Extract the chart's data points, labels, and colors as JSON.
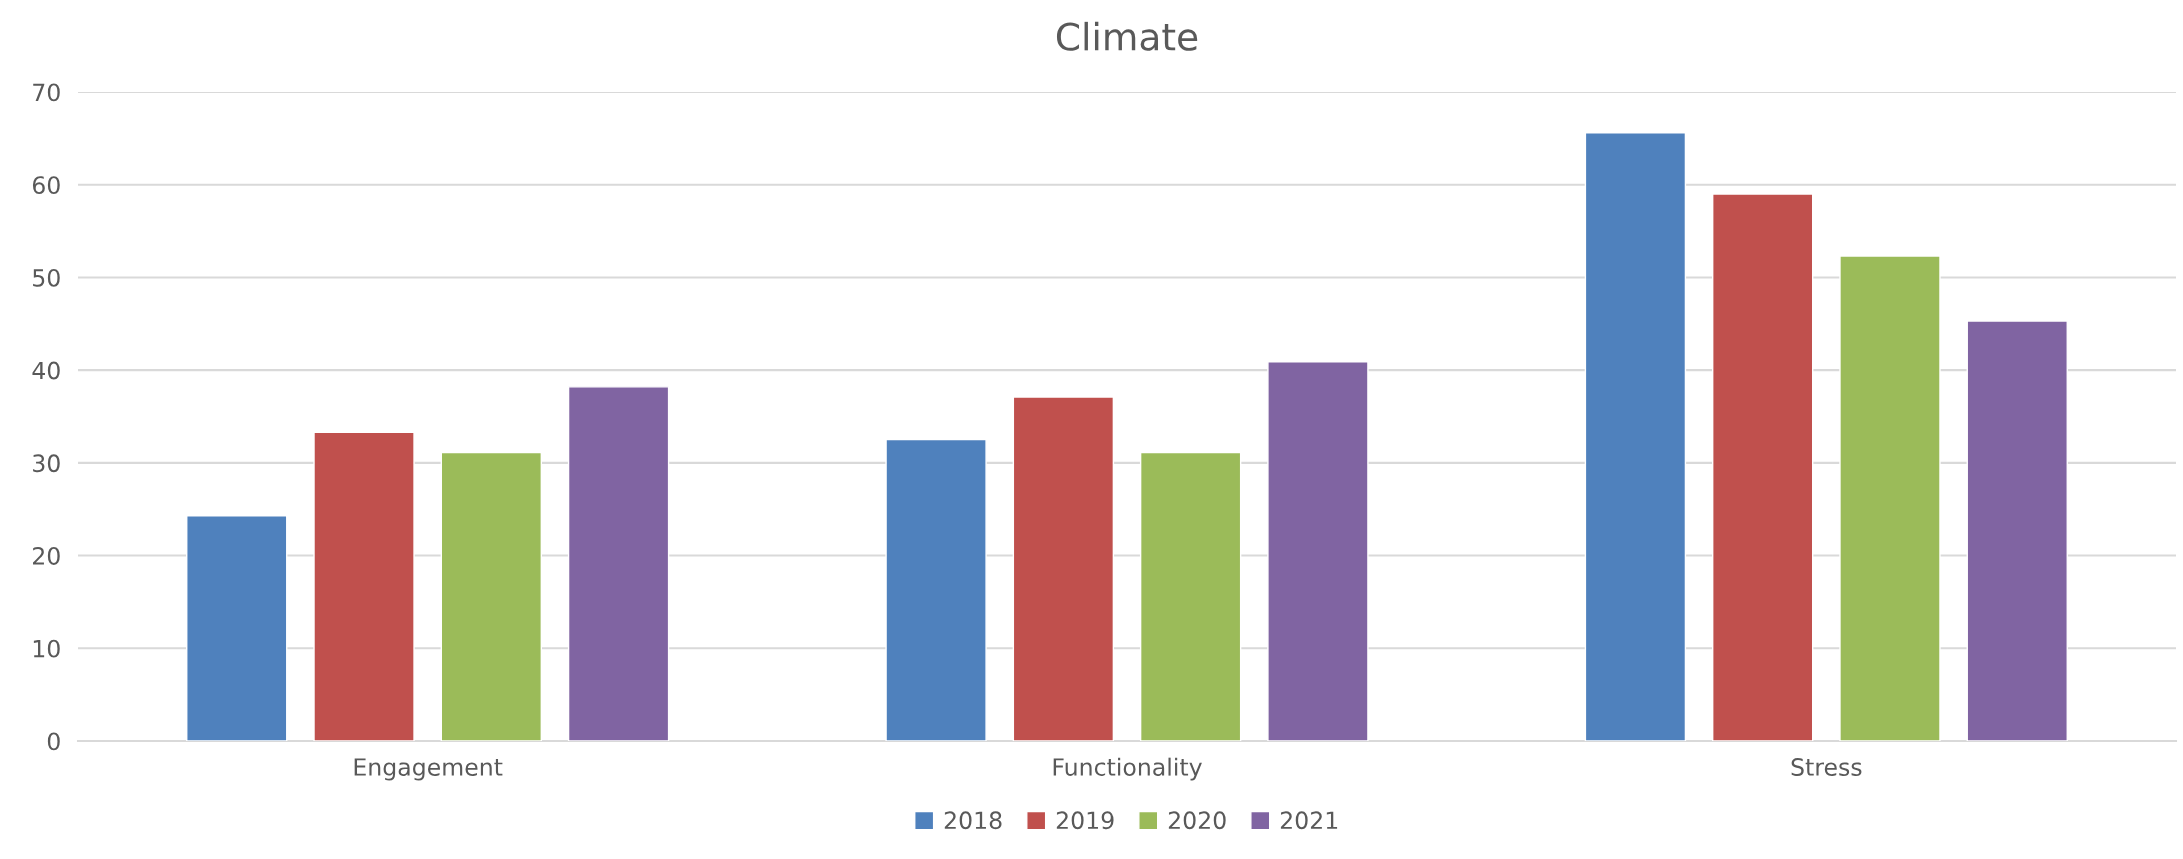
{
  "chart_data": {
    "type": "bar",
    "title": "Climate",
    "categories": [
      "Engagement",
      "Functionality",
      "Stress"
    ],
    "series": [
      {
        "name": "2018",
        "color": "#4f81bd",
        "values": [
          24.3,
          32.5,
          65.6
        ]
      },
      {
        "name": "2019",
        "color": "#c0504d",
        "values": [
          33.3,
          37.1,
          59.0
        ]
      },
      {
        "name": "2020",
        "color": "#9bbb59",
        "values": [
          31.1,
          31.1,
          52.3
        ]
      },
      {
        "name": "2021",
        "color": "#8064a2",
        "values": [
          38.2,
          40.9,
          45.3
        ]
      }
    ],
    "ylim": [
      0,
      70
    ],
    "yticks": [
      0,
      10,
      20,
      30,
      40,
      50,
      60,
      70
    ],
    "grid": "y",
    "legend": "bottom"
  }
}
